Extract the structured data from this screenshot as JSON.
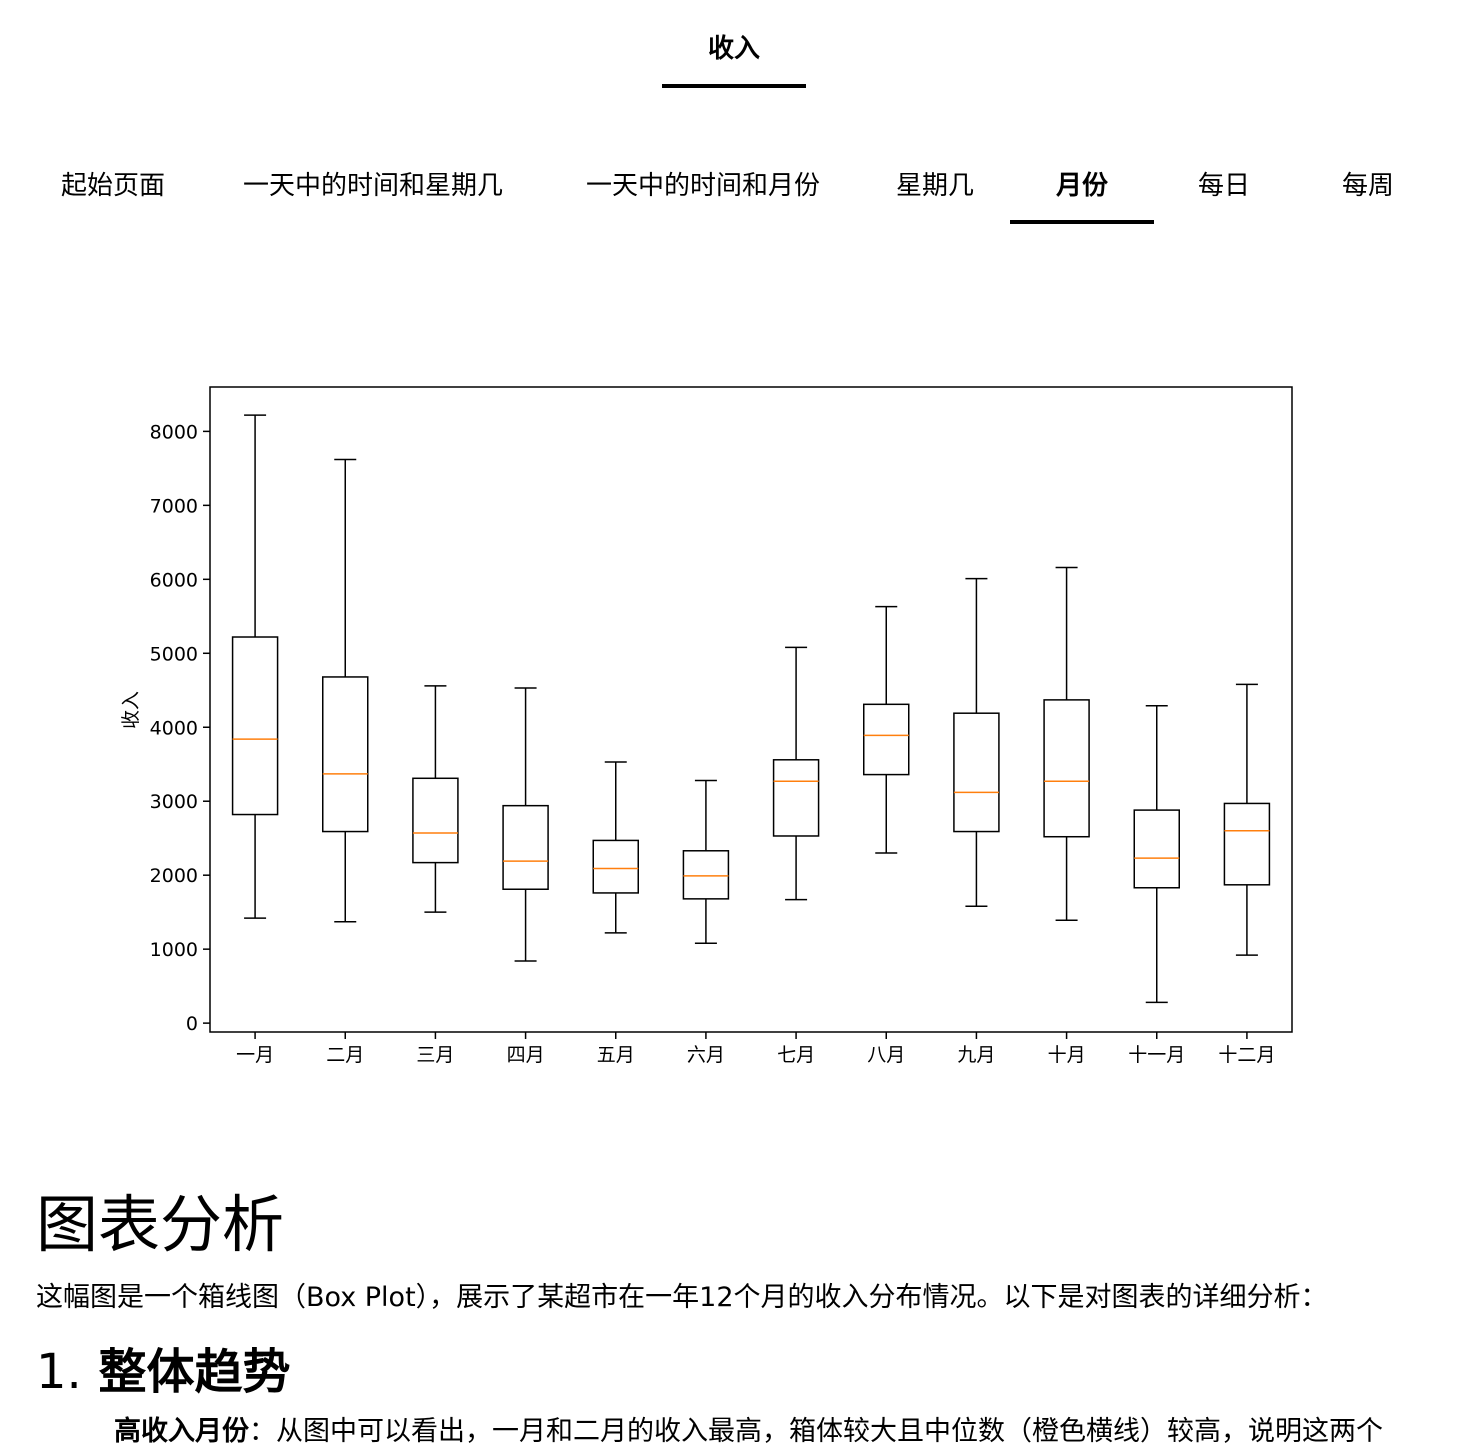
{
  "top_tab": {
    "label": "收入"
  },
  "subtabs": [
    {
      "label": "起始页面",
      "active": false
    },
    {
      "label": "一天中的时间和星期几",
      "active": false
    },
    {
      "label": "一天中的时间和月份",
      "active": false
    },
    {
      "label": "星期几",
      "active": false
    },
    {
      "label": "月份",
      "active": true
    },
    {
      "label": "每日",
      "active": false
    },
    {
      "label": "每周",
      "active": false
    }
  ],
  "chart_data": {
    "type": "box",
    "ylabel": "收入",
    "ylim": [
      -120,
      8600
    ],
    "yticks": [
      0,
      1000,
      2000,
      3000,
      4000,
      5000,
      6000,
      7000,
      8000
    ],
    "categories": [
      "一月",
      "二月",
      "三月",
      "四月",
      "五月",
      "六月",
      "七月",
      "八月",
      "九月",
      "十月",
      "十一月",
      "十二月"
    ],
    "boxes": [
      {
        "whisker_low": 1420,
        "q1": 2820,
        "median": 3840,
        "q3": 5220,
        "whisker_high": 8220
      },
      {
        "whisker_low": 1370,
        "q1": 2590,
        "median": 3370,
        "q3": 4680,
        "whisker_high": 7620
      },
      {
        "whisker_low": 1500,
        "q1": 2170,
        "median": 2570,
        "q3": 3310,
        "whisker_high": 4560
      },
      {
        "whisker_low": 840,
        "q1": 1810,
        "median": 2190,
        "q3": 2940,
        "whisker_high": 4530
      },
      {
        "whisker_low": 1220,
        "q1": 1760,
        "median": 2090,
        "q3": 2470,
        "whisker_high": 3530
      },
      {
        "whisker_low": 1080,
        "q1": 1680,
        "median": 1990,
        "q3": 2330,
        "whisker_high": 3280
      },
      {
        "whisker_low": 1670,
        "q1": 2530,
        "median": 3270,
        "q3": 3560,
        "whisker_high": 5080
      },
      {
        "whisker_low": 2300,
        "q1": 3360,
        "median": 3890,
        "q3": 4310,
        "whisker_high": 5630
      },
      {
        "whisker_low": 1580,
        "q1": 2590,
        "median": 3120,
        "q3": 4190,
        "whisker_high": 6010
      },
      {
        "whisker_low": 1390,
        "q1": 2520,
        "median": 3270,
        "q3": 4370,
        "whisker_high": 6160
      },
      {
        "whisker_low": 280,
        "q1": 1830,
        "median": 2230,
        "q3": 2880,
        "whisker_high": 4290
      },
      {
        "whisker_low": 920,
        "q1": 1870,
        "median": 2600,
        "q3": 2970,
        "whisker_high": 4580
      }
    ],
    "colors": {
      "box": "#000000",
      "median": "#ff7f0e"
    }
  },
  "analysis": {
    "heading": "图表分析",
    "intro": "这幅图是一个箱线图（Box Plot），展示了某超市在一年12个月的收入分布情况。以下是对图表的详细分析：",
    "section1_number": "1.",
    "section1_title": "整体趋势",
    "bullet1_bold": "高收入月份",
    "bullet1_text": "：从图中可以看出，一月和二月的收入最高，箱体较大且中位数（橙色横线）较高，说明这两个"
  }
}
